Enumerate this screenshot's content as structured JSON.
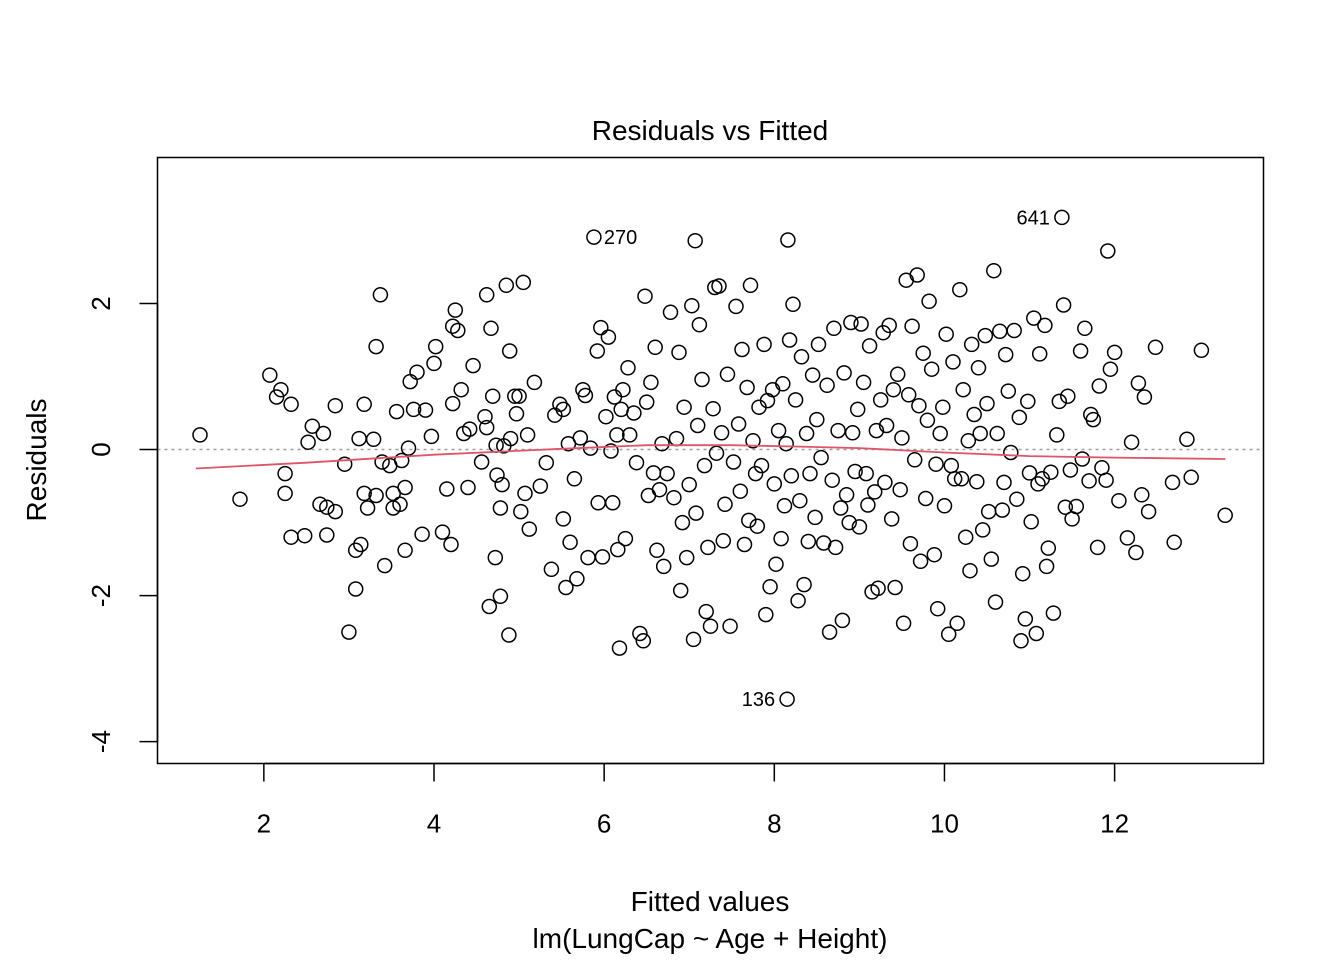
{
  "chart_data": {
    "type": "scatter",
    "title": "Residuals vs Fitted",
    "xlabel": "Fitted values",
    "subtitle": "lm(LungCap ~ Age + Height)",
    "ylabel": "Residuals",
    "xlim": [
      0.75,
      13.75
    ],
    "ylim": [
      -4.3,
      4.0
    ],
    "xticks": [
      2,
      4,
      6,
      8,
      10,
      12
    ],
    "yticks": [
      -4,
      -2,
      0,
      2
    ],
    "reference_line": 0,
    "colors": {
      "points": "#000000",
      "smoother": "#DF536B",
      "reference": "#9e9e9e"
    },
    "labeled_points": [
      {
        "label": "641",
        "x": 11.38,
        "y": 3.18
      },
      {
        "label": "270",
        "x": 5.88,
        "y": 2.91
      },
      {
        "label": "136",
        "x": 8.15,
        "y": -3.42
      }
    ],
    "smoother": {
      "x": [
        1.2,
        2.5,
        4.0,
        5.5,
        6.5,
        7.5,
        8.3,
        9.0,
        10.0,
        11.0,
        12.0,
        13.3
      ],
      "y": [
        -0.26,
        -0.18,
        -0.07,
        0.01,
        0.06,
        0.06,
        0.04,
        0.02,
        -0.04,
        -0.09,
        -0.11,
        -0.13
      ]
    },
    "points": [
      [
        1.25,
        0.2
      ],
      [
        1.72,
        -0.68
      ],
      [
        2.07,
        1.02
      ],
      [
        2.15,
        0.72
      ],
      [
        2.2,
        0.82
      ],
      [
        2.25,
        -0.33
      ],
      [
        2.25,
        -0.6
      ],
      [
        2.32,
        0.62
      ],
      [
        2.32,
        -1.2
      ],
      [
        2.48,
        -1.18
      ],
      [
        2.52,
        0.1
      ],
      [
        2.57,
        0.32
      ],
      [
        2.66,
        -0.75
      ],
      [
        2.7,
        0.22
      ],
      [
        2.74,
        -0.79
      ],
      [
        2.74,
        -1.17
      ],
      [
        2.84,
        0.6
      ],
      [
        2.84,
        -0.85
      ],
      [
        2.95,
        -0.2
      ],
      [
        3.0,
        -2.5
      ],
      [
        3.08,
        -1.38
      ],
      [
        3.08,
        -1.91
      ],
      [
        3.12,
        0.15
      ],
      [
        3.14,
        -1.3
      ],
      [
        3.18,
        0.62
      ],
      [
        3.18,
        -0.6
      ],
      [
        3.22,
        -0.8
      ],
      [
        3.29,
        0.14
      ],
      [
        3.32,
        1.41
      ],
      [
        3.32,
        -0.63
      ],
      [
        3.37,
        2.12
      ],
      [
        3.39,
        -0.17
      ],
      [
        3.42,
        -1.59
      ],
      [
        3.48,
        -0.22
      ],
      [
        3.52,
        -0.6
      ],
      [
        3.52,
        -0.8
      ],
      [
        3.56,
        0.52
      ],
      [
        3.6,
        -0.75
      ],
      [
        3.62,
        -0.15
      ],
      [
        3.66,
        -0.52
      ],
      [
        3.66,
        -1.38
      ],
      [
        3.7,
        0.02
      ],
      [
        3.72,
        0.93
      ],
      [
        3.76,
        0.55
      ],
      [
        3.8,
        1.06
      ],
      [
        3.86,
        -1.16
      ],
      [
        3.9,
        0.54
      ],
      [
        3.97,
        0.18
      ],
      [
        4.0,
        1.18
      ],
      [
        4.02,
        1.41
      ],
      [
        4.1,
        -1.13
      ],
      [
        4.15,
        -0.54
      ],
      [
        4.2,
        -1.3
      ],
      [
        4.22,
        1.69
      ],
      [
        4.22,
        0.63
      ],
      [
        4.25,
        1.91
      ],
      [
        4.28,
        1.63
      ],
      [
        4.32,
        0.82
      ],
      [
        4.35,
        0.22
      ],
      [
        4.4,
        -0.52
      ],
      [
        4.42,
        0.28
      ],
      [
        4.46,
        1.15
      ],
      [
        4.56,
        -0.17
      ],
      [
        4.6,
        0.45
      ],
      [
        4.62,
        0.3
      ],
      [
        4.62,
        2.12
      ],
      [
        4.65,
        -2.15
      ],
      [
        4.67,
        1.66
      ],
      [
        4.69,
        0.73
      ],
      [
        4.72,
        -1.48
      ],
      [
        4.73,
        0.06
      ],
      [
        4.74,
        -0.35
      ],
      [
        4.78,
        -0.8
      ],
      [
        4.78,
        -2.01
      ],
      [
        4.8,
        -0.48
      ],
      [
        4.82,
        0.05
      ],
      [
        4.85,
        2.25
      ],
      [
        4.88,
        -2.54
      ],
      [
        4.89,
        1.35
      ],
      [
        4.9,
        0.15
      ],
      [
        4.95,
        0.73
      ],
      [
        4.97,
        0.49
      ],
      [
        5.0,
        0.73
      ],
      [
        5.02,
        -0.85
      ],
      [
        5.05,
        2.29
      ],
      [
        5.07,
        -0.6
      ],
      [
        5.1,
        0.2
      ],
      [
        5.12,
        -1.09
      ],
      [
        5.18,
        0.92
      ],
      [
        5.25,
        -0.5
      ],
      [
        5.32,
        -0.18
      ],
      [
        5.38,
        -1.64
      ],
      [
        5.42,
        0.47
      ],
      [
        5.48,
        0.62
      ],
      [
        5.52,
        0.55
      ],
      [
        5.52,
        -0.95
      ],
      [
        5.55,
        -1.89
      ],
      [
        5.58,
        0.08
      ],
      [
        5.6,
        -1.27
      ],
      [
        5.65,
        -0.4
      ],
      [
        5.68,
        -1.77
      ],
      [
        5.72,
        0.16
      ],
      [
        5.75,
        0.82
      ],
      [
        5.78,
        0.74
      ],
      [
        5.81,
        -1.48
      ],
      [
        5.84,
        0.02
      ],
      [
        5.88,
        2.91
      ],
      [
        5.92,
        1.35
      ],
      [
        5.93,
        -0.73
      ],
      [
        5.96,
        1.67
      ],
      [
        5.98,
        -1.47
      ],
      [
        6.02,
        0.45
      ],
      [
        6.05,
        1.54
      ],
      [
        6.08,
        -0.02
      ],
      [
        6.1,
        -0.73
      ],
      [
        6.12,
        0.72
      ],
      [
        6.15,
        0.2
      ],
      [
        6.16,
        -1.37
      ],
      [
        6.18,
        -2.72
      ],
      [
        6.2,
        0.55
      ],
      [
        6.22,
        0.82
      ],
      [
        6.25,
        -1.22
      ],
      [
        6.28,
        1.12
      ],
      [
        6.3,
        0.2
      ],
      [
        6.35,
        0.5
      ],
      [
        6.38,
        -0.18
      ],
      [
        6.42,
        -2.52
      ],
      [
        6.46,
        -2.62
      ],
      [
        6.48,
        2.1
      ],
      [
        6.5,
        0.65
      ],
      [
        6.52,
        -0.63
      ],
      [
        6.55,
        0.92
      ],
      [
        6.58,
        -0.32
      ],
      [
        6.6,
        1.4
      ],
      [
        6.62,
        -1.38
      ],
      [
        6.65,
        -0.55
      ],
      [
        6.68,
        0.08
      ],
      [
        6.7,
        -1.6
      ],
      [
        6.74,
        -0.33
      ],
      [
        6.78,
        1.88
      ],
      [
        6.82,
        -0.66
      ],
      [
        6.85,
        0.15
      ],
      [
        6.88,
        1.33
      ],
      [
        6.9,
        -1.93
      ],
      [
        6.92,
        -1.0
      ],
      [
        6.94,
        0.58
      ],
      [
        6.97,
        -1.48
      ],
      [
        7.0,
        -0.48
      ],
      [
        7.03,
        1.97
      ],
      [
        7.05,
        -2.6
      ],
      [
        7.07,
        2.86
      ],
      [
        7.08,
        -0.87
      ],
      [
        7.1,
        0.33
      ],
      [
        7.12,
        1.71
      ],
      [
        7.15,
        0.96
      ],
      [
        7.18,
        -0.22
      ],
      [
        7.2,
        -2.22
      ],
      [
        7.22,
        -1.34
      ],
      [
        7.25,
        -2.42
      ],
      [
        7.28,
        0.56
      ],
      [
        7.3,
        2.22
      ],
      [
        7.32,
        -0.05
      ],
      [
        7.35,
        2.24
      ],
      [
        7.38,
        0.23
      ],
      [
        7.4,
        -1.25
      ],
      [
        7.42,
        -0.75
      ],
      [
        7.45,
        1.03
      ],
      [
        7.48,
        -2.42
      ],
      [
        7.52,
        -0.17
      ],
      [
        7.55,
        1.96
      ],
      [
        7.58,
        0.35
      ],
      [
        7.6,
        -0.57
      ],
      [
        7.62,
        1.37
      ],
      [
        7.65,
        -1.3
      ],
      [
        7.68,
        0.85
      ],
      [
        7.7,
        -0.97
      ],
      [
        7.72,
        2.25
      ],
      [
        7.75,
        0.12
      ],
      [
        7.78,
        -0.33
      ],
      [
        7.8,
        -1.05
      ],
      [
        7.82,
        0.58
      ],
      [
        7.85,
        -0.22
      ],
      [
        7.88,
        1.44
      ],
      [
        7.9,
        -2.26
      ],
      [
        7.92,
        0.67
      ],
      [
        7.95,
        -1.88
      ],
      [
        7.98,
        0.82
      ],
      [
        8.0,
        -0.47
      ],
      [
        8.02,
        -1.57
      ],
      [
        8.05,
        0.26
      ],
      [
        8.08,
        -1.22
      ],
      [
        8.1,
        0.9
      ],
      [
        8.12,
        -0.77
      ],
      [
        8.14,
        0.08
      ],
      [
        8.15,
        -3.42
      ],
      [
        8.16,
        2.87
      ],
      [
        8.18,
        1.5
      ],
      [
        8.2,
        -0.36
      ],
      [
        8.22,
        1.99
      ],
      [
        8.25,
        0.68
      ],
      [
        8.28,
        -2.07
      ],
      [
        8.3,
        -0.7
      ],
      [
        8.32,
        1.27
      ],
      [
        8.35,
        -1.85
      ],
      [
        8.38,
        0.22
      ],
      [
        8.4,
        -1.26
      ],
      [
        8.42,
        -0.33
      ],
      [
        8.45,
        1.02
      ],
      [
        8.48,
        -0.93
      ],
      [
        8.5,
        0.41
      ],
      [
        8.52,
        1.44
      ],
      [
        8.55,
        -0.11
      ],
      [
        8.58,
        -1.28
      ],
      [
        8.62,
        0.88
      ],
      [
        8.65,
        -2.5
      ],
      [
        8.68,
        -0.42
      ],
      [
        8.7,
        1.66
      ],
      [
        8.72,
        -1.34
      ],
      [
        8.75,
        0.26
      ],
      [
        8.78,
        -0.8
      ],
      [
        8.8,
        -2.34
      ],
      [
        8.82,
        1.05
      ],
      [
        8.85,
        -0.62
      ],
      [
        8.88,
        -1.0
      ],
      [
        8.9,
        1.74
      ],
      [
        8.92,
        0.23
      ],
      [
        8.95,
        -0.3
      ],
      [
        8.98,
        0.55
      ],
      [
        9.0,
        -1.06
      ],
      [
        9.02,
        1.72
      ],
      [
        9.05,
        0.92
      ],
      [
        9.08,
        -0.33
      ],
      [
        9.1,
        -0.76
      ],
      [
        9.12,
        1.42
      ],
      [
        9.15,
        -1.95
      ],
      [
        9.18,
        -0.58
      ],
      [
        9.2,
        0.26
      ],
      [
        9.22,
        -1.9
      ],
      [
        9.25,
        0.68
      ],
      [
        9.28,
        1.6
      ],
      [
        9.3,
        -0.45
      ],
      [
        9.32,
        0.33
      ],
      [
        9.35,
        1.7
      ],
      [
        9.38,
        -0.95
      ],
      [
        9.4,
        0.82
      ],
      [
        9.42,
        -1.89
      ],
      [
        9.45,
        1.03
      ],
      [
        9.48,
        -0.55
      ],
      [
        9.5,
        0.16
      ],
      [
        9.52,
        -2.38
      ],
      [
        9.55,
        2.32
      ],
      [
        9.58,
        0.75
      ],
      [
        9.6,
        -1.29
      ],
      [
        9.62,
        1.69
      ],
      [
        9.65,
        -0.14
      ],
      [
        9.68,
        2.39
      ],
      [
        9.7,
        0.6
      ],
      [
        9.72,
        -1.53
      ],
      [
        9.75,
        1.32
      ],
      [
        9.78,
        -0.67
      ],
      [
        9.8,
        0.4
      ],
      [
        9.82,
        2.03
      ],
      [
        9.85,
        1.1
      ],
      [
        9.88,
        -1.44
      ],
      [
        9.9,
        -0.2
      ],
      [
        9.92,
        -2.18
      ],
      [
        9.95,
        0.22
      ],
      [
        9.98,
        0.58
      ],
      [
        10.0,
        -0.77
      ],
      [
        10.02,
        1.58
      ],
      [
        10.05,
        -2.53
      ],
      [
        10.08,
        -0.22
      ],
      [
        10.1,
        1.2
      ],
      [
        10.12,
        -0.4
      ],
      [
        10.15,
        -2.38
      ],
      [
        10.18,
        2.19
      ],
      [
        10.2,
        -0.4
      ],
      [
        10.22,
        0.82
      ],
      [
        10.25,
        -1.2
      ],
      [
        10.28,
        0.12
      ],
      [
        10.3,
        -1.66
      ],
      [
        10.32,
        1.44
      ],
      [
        10.35,
        0.48
      ],
      [
        10.38,
        -0.44
      ],
      [
        10.4,
        1.12
      ],
      [
        10.42,
        0.22
      ],
      [
        10.45,
        -1.1
      ],
      [
        10.48,
        1.56
      ],
      [
        10.5,
        0.63
      ],
      [
        10.52,
        -0.85
      ],
      [
        10.55,
        -1.5
      ],
      [
        10.58,
        2.45
      ],
      [
        10.6,
        -2.09
      ],
      [
        10.62,
        0.22
      ],
      [
        10.65,
        1.62
      ],
      [
        10.68,
        -0.83
      ],
      [
        10.7,
        -0.45
      ],
      [
        10.72,
        1.3
      ],
      [
        10.75,
        0.8
      ],
      [
        10.78,
        -0.04
      ],
      [
        10.82,
        1.63
      ],
      [
        10.85,
        -0.68
      ],
      [
        10.88,
        0.44
      ],
      [
        10.9,
        -2.62
      ],
      [
        10.92,
        -1.7
      ],
      [
        10.95,
        -2.32
      ],
      [
        10.98,
        0.66
      ],
      [
        11.0,
        -0.32
      ],
      [
        11.02,
        -0.99
      ],
      [
        11.05,
        1.8
      ],
      [
        11.08,
        -2.52
      ],
      [
        11.1,
        -0.47
      ],
      [
        11.12,
        1.31
      ],
      [
        11.15,
        -0.4
      ],
      [
        11.18,
        1.7
      ],
      [
        11.2,
        -1.6
      ],
      [
        11.22,
        -1.35
      ],
      [
        11.25,
        -0.31
      ],
      [
        11.28,
        -2.24
      ],
      [
        11.32,
        0.2
      ],
      [
        11.35,
        0.66
      ],
      [
        11.38,
        3.18
      ],
      [
        11.4,
        1.98
      ],
      [
        11.42,
        -0.79
      ],
      [
        11.45,
        0.73
      ],
      [
        11.48,
        -0.28
      ],
      [
        11.5,
        -0.95
      ],
      [
        11.55,
        -0.78
      ],
      [
        11.6,
        1.35
      ],
      [
        11.62,
        -0.13
      ],
      [
        11.65,
        1.66
      ],
      [
        11.7,
        -0.43
      ],
      [
        11.72,
        0.48
      ],
      [
        11.75,
        0.41
      ],
      [
        11.8,
        -1.34
      ],
      [
        11.82,
        0.87
      ],
      [
        11.85,
        -0.25
      ],
      [
        11.9,
        -0.42
      ],
      [
        11.92,
        2.72
      ],
      [
        11.95,
        1.1
      ],
      [
        12.0,
        1.33
      ],
      [
        12.05,
        -0.7
      ],
      [
        12.15,
        -1.21
      ],
      [
        12.2,
        0.1
      ],
      [
        12.25,
        -1.41
      ],
      [
        12.28,
        0.91
      ],
      [
        12.32,
        -0.62
      ],
      [
        12.35,
        0.72
      ],
      [
        12.4,
        -0.85
      ],
      [
        12.48,
        1.4
      ],
      [
        12.68,
        -0.45
      ],
      [
        12.7,
        -1.27
      ],
      [
        12.85,
        0.14
      ],
      [
        12.9,
        -0.38
      ],
      [
        13.02,
        1.36
      ],
      [
        13.3,
        -0.9
      ]
    ]
  }
}
